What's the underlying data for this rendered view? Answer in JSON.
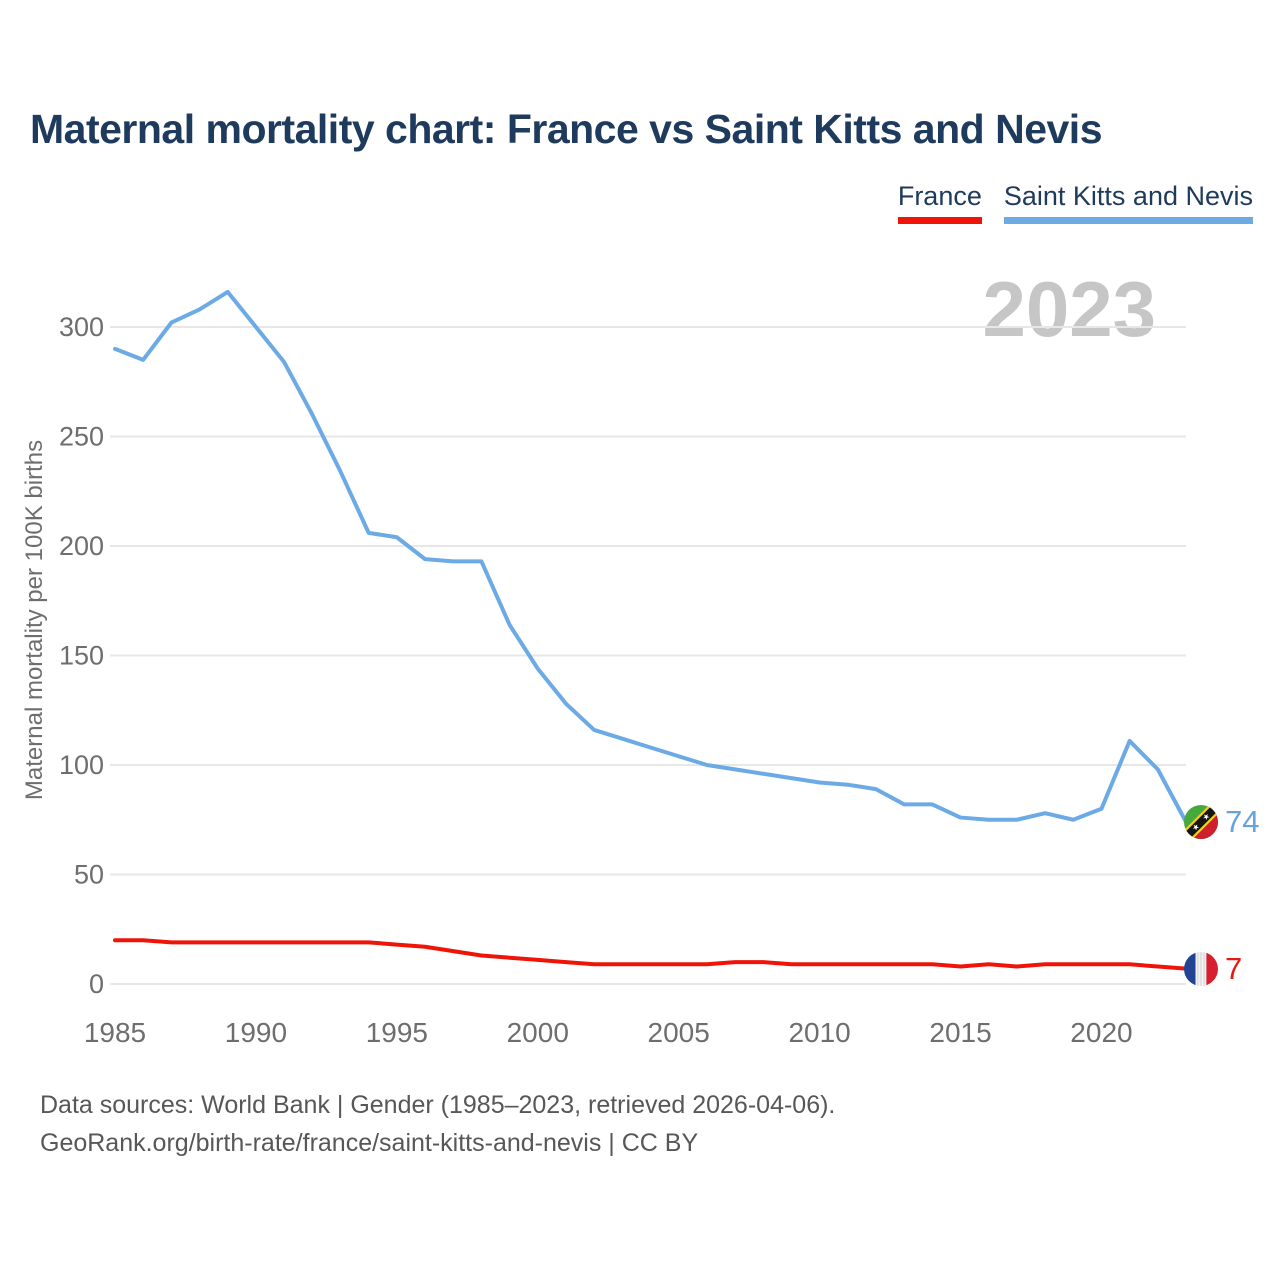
{
  "header": {
    "title": "Maternal mortality chart: France vs Saint Kitts and Nevis"
  },
  "legend": {
    "items": [
      {
        "label": "France",
        "color": "#ee1408"
      },
      {
        "label": "Saint Kitts and Nevis",
        "color": "#6caae6"
      }
    ]
  },
  "chart": {
    "watermark": "2023",
    "y_axis": {
      "title": "Maternal mortality per 100K births",
      "ticks": [
        0,
        50,
        100,
        150,
        200,
        250,
        300
      ]
    },
    "x_axis": {
      "ticks": [
        1985,
        1990,
        1995,
        2000,
        2005,
        2010,
        2015,
        2020
      ]
    },
    "endpoints": [
      {
        "series": "Saint Kitts and Nevis",
        "value": "74",
        "y": 74,
        "flag_icon": "saint-kitts-and-nevis-flag-icon",
        "color": "#64a3e0"
      },
      {
        "series": "France",
        "value": "7",
        "y": 7,
        "flag_icon": "france-flag-icon",
        "color": "#e41b12"
      }
    ],
    "colors": {
      "france_line": "#ee1408",
      "saint_kitts_line": "#6caae6",
      "gridline": "#e7e7e7",
      "tick_text": "#6e6e6e",
      "title_text": "#1e3a5c",
      "watermark_text": "#c6c6c6"
    }
  },
  "chart_data": {
    "type": "line",
    "title": "Maternal mortality chart: France vs Saint Kitts and Nevis",
    "xlabel": "",
    "ylabel": "Maternal mortality per 100K births",
    "ylim": [
      0,
      320
    ],
    "xlim": [
      1985,
      2023
    ],
    "grid": "horizontal",
    "legend_position": "top-right",
    "latest_year": "2023",
    "x": [
      1985,
      1986,
      1987,
      1988,
      1989,
      1990,
      1991,
      1992,
      1993,
      1994,
      1995,
      1996,
      1997,
      1998,
      1999,
      2000,
      2001,
      2002,
      2003,
      2004,
      2005,
      2006,
      2007,
      2008,
      2009,
      2010,
      2011,
      2012,
      2013,
      2014,
      2015,
      2016,
      2017,
      2018,
      2019,
      2020,
      2021,
      2022,
      2023
    ],
    "series": [
      {
        "name": "France",
        "color": "#ee1408",
        "values": [
          20,
          20,
          19,
          19,
          19,
          19,
          19,
          19,
          19,
          19,
          18,
          17,
          15,
          13,
          12,
          11,
          10,
          9,
          9,
          9,
          9,
          9,
          10,
          10,
          9,
          9,
          9,
          9,
          9,
          9,
          8,
          9,
          8,
          9,
          9,
          9,
          9,
          8,
          7
        ]
      },
      {
        "name": "Saint Kitts and Nevis",
        "color": "#6caae6",
        "values": [
          290,
          285,
          302,
          308,
          316,
          300,
          284,
          260,
          234,
          206,
          204,
          194,
          193,
          193,
          164,
          144,
          128,
          116,
          112,
          108,
          104,
          100,
          98,
          96,
          94,
          92,
          91,
          89,
          82,
          82,
          76,
          75,
          75,
          78,
          75,
          80,
          111,
          98,
          74
        ]
      }
    ]
  },
  "footer": {
    "line1": "Data sources: World Bank | Gender (1985–2023, retrieved 2026-04-06).",
    "line2": "GeoRank.org/birth-rate/france/saint-kitts-and-nevis | CC BY"
  }
}
